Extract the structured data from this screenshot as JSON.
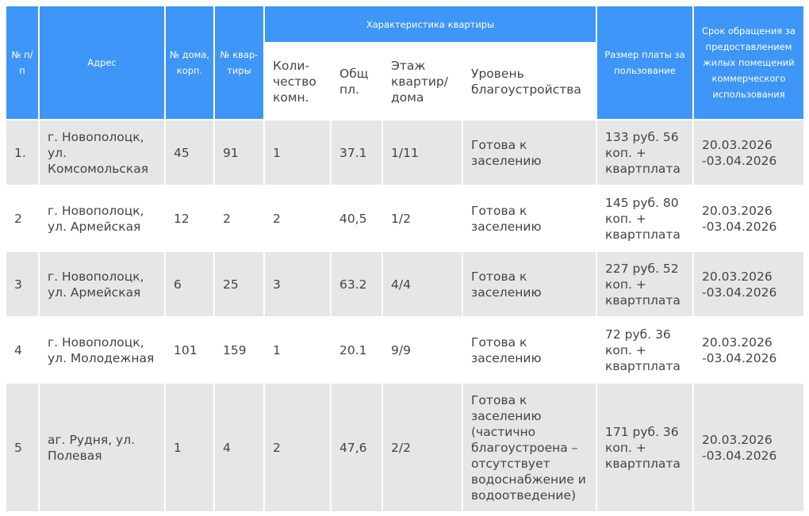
{
  "header": {
    "num": "№ п/п",
    "address": "Адрес",
    "house": "№ дома, корп.",
    "flat": "№ квар-тиры",
    "characteristics": "Характеристика квартиры",
    "rooms": "Коли-чество комн.",
    "area": "Общ пл.",
    "floor": "Этаж квартир/ дома",
    "level": "Уровень благоустройства",
    "fee": "Размер платы за пользование",
    "term": "Срок обращения за предоставлением жилых помещений коммерческого использования"
  },
  "rows": [
    {
      "num": "1.",
      "address": "г. Новополоцк, ул. Комсомольская",
      "house": "45",
      "flat": "91",
      "rooms": "1",
      "area": "37.1",
      "floor": "1/11",
      "level": "Готова к заселению",
      "fee": "133  руб. 56 коп. + квартплата",
      "term": "20.03.2026 -03.04.2026"
    },
    {
      "num": "2",
      "address": "г. Новополоцк, ул. Армейская",
      "house": "12",
      "flat": "2",
      "rooms": "2",
      "area": "40,5",
      "floor": "1/2",
      "level": "Готова к заселению",
      "fee": "145 руб. 80 коп. + квартплата",
      "term": "20.03.2026 -03.04.2026"
    },
    {
      "num": "3",
      "address": "г. Новополоцк, ул. Армейская",
      "house": "6",
      "flat": "25",
      "rooms": "3",
      "area": "63.2",
      "floor": "4/4",
      "level": "Готова к заселению",
      "fee": "227  руб. 52 коп. + квартплата",
      "term": "20.03.2026 -03.04.2026"
    },
    {
      "num": "4",
      "address": "г. Новополоцк, ул. Молодежная",
      "house": "101",
      "flat": "159",
      "rooms": "1",
      "area": "20.1",
      "floor": "9/9",
      "level": "Готова к заселению",
      "fee": "72  руб. 36 коп. + квартплата",
      "term": "20.03.2026 -03.04.2026"
    },
    {
      "num": "5",
      "address": "аг. Рудня, ул. Полевая",
      "house": "1",
      "flat": "4",
      "rooms": "2",
      "area": "47,6",
      "floor": "2/2",
      "level": "Готова к заселению (частично благоустроена – отсутствует водоснабжение и водоотведение)",
      "fee": "171  руб. 36 коп. + квартплата",
      "term": "20.03.2026 -03.04.2026"
    }
  ],
  "colors": {
    "header_bg": "#3d96f8",
    "row_odd_bg": "#e6e6e6",
    "text": "#444444"
  }
}
